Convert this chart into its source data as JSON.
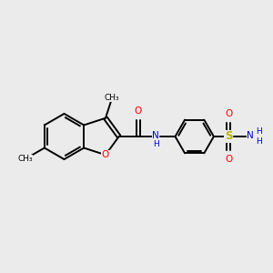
{
  "background_color": "#ebebeb",
  "bond_color": "#000000",
  "oxygen_color": "#ff0000",
  "nitrogen_color": "#0000cd",
  "sulfur_color": "#b8b800",
  "fig_width": 3.0,
  "fig_height": 3.0,
  "dpi": 100,
  "bond_lw": 1.4,
  "font_size": 7.0,
  "xlim": [
    0,
    10
  ],
  "ylim": [
    0,
    10
  ]
}
